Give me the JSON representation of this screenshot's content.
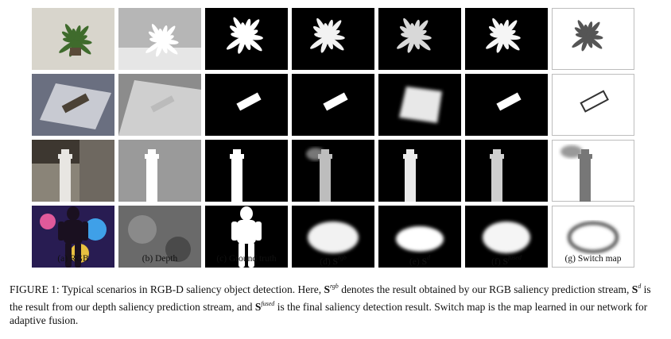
{
  "figure": {
    "columns": [
      {
        "prefix": "(a)",
        "label": "RGB",
        "sup": ""
      },
      {
        "prefix": "(b)",
        "label": "Depth",
        "sup": ""
      },
      {
        "prefix": "(c)",
        "label": "Ground truth",
        "sup": ""
      },
      {
        "prefix": "(d)",
        "label": "S",
        "sup": "rgb"
      },
      {
        "prefix": "(e)",
        "label": "S",
        "sup": "d"
      },
      {
        "prefix": "(f)",
        "label": "S",
        "sup": "fused"
      },
      {
        "prefix": "(g)",
        "label": "Switch map",
        "sup": ""
      }
    ],
    "rows": [
      "plant",
      "object-on-table",
      "tower",
      "figure-at-night"
    ]
  },
  "caption": {
    "t1": "FIGURE 1: Typical scenarios in RGB-D saliency object detection. Here, ",
    "s1": "S",
    "s1_sup": "rgb",
    "t2": " denotes the result obtained by our RGB saliency prediction stream, ",
    "s2": "S",
    "s2_sup": "d",
    "t3": " is the result from our depth saliency prediction stream, and ",
    "s3": "S",
    "s3_sup": "fused",
    "t4": " is the final saliency detection result. Switch map is the map learned in our network for adaptive fusion."
  }
}
